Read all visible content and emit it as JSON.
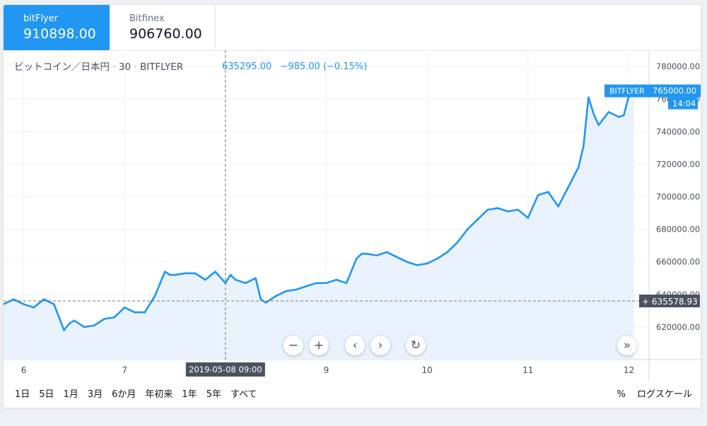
{
  "tabs": [
    {
      "name": "bitFlyer",
      "price": "910898.00"
    },
    {
      "name": "Bitfinex",
      "price": "906760.00"
    }
  ],
  "header": {
    "symbol": "ビットコイン／日本円",
    "interval": "30",
    "exchange": "BITFLYER",
    "close": "635295.00",
    "change": "−985.00 (−0.15%)"
  },
  "price_tag": {
    "label": "BITFLYER",
    "value": "765000.00",
    "time": "14:04"
  },
  "crosshair": {
    "price": "635578.93",
    "date": "2019-05-08",
    "time": "09:00"
  },
  "controls": {
    "zoom_out": "−",
    "zoom_in": "+",
    "prev": "‹",
    "next": "›",
    "reset": "↻",
    "scroll_end": "»"
  },
  "ranges": [
    "1日",
    "5日",
    "1月",
    "3月",
    "6か月",
    "年初来",
    "1年",
    "5年",
    "すべて"
  ],
  "tools": {
    "percent": "%",
    "log": "ログスケール"
  },
  "colors": {
    "accent": "#2196f3",
    "area": "#eaf3fd",
    "grid": "#eef0f3"
  },
  "chart_data": {
    "type": "area",
    "ylim": [
      600000,
      790000
    ],
    "xlim": [
      5.8,
      12.2
    ],
    "yticks": [
      620000,
      640000,
      660000,
      680000,
      700000,
      720000,
      740000,
      760000,
      780000
    ],
    "ytick_labels": [
      "620000.00",
      "640000.00",
      "660000.00",
      "680000.00",
      "700000.00",
      "720000.00",
      "740000.00",
      "760000.00",
      "780000.00"
    ],
    "xticks": [
      6,
      7,
      9,
      10,
      11,
      12
    ],
    "xtick_labels": [
      "6",
      "7",
      "9",
      "10",
      "11",
      "12"
    ],
    "series": [
      {
        "x": [
          5.8,
          5.9,
          6.0,
          6.1,
          6.2,
          6.3,
          6.4,
          6.45,
          6.5,
          6.6,
          6.7,
          6.8,
          6.9,
          7.0,
          7.1,
          7.2,
          7.3,
          7.4,
          7.45,
          7.5,
          7.6,
          7.7,
          7.8,
          7.9,
          8.0,
          8.05,
          8.1,
          8.2,
          8.3,
          8.35,
          8.4,
          8.5,
          8.6,
          8.7,
          8.8,
          8.9,
          9.0,
          9.1,
          9.2,
          9.3,
          9.35,
          9.4,
          9.5,
          9.6,
          9.7,
          9.8,
          9.9,
          10.0,
          10.1,
          10.2,
          10.3,
          10.4,
          10.5,
          10.6,
          10.7,
          10.8,
          10.9,
          11.0,
          11.1,
          11.2,
          11.3,
          11.4,
          11.5,
          11.55,
          11.6,
          11.65,
          11.7,
          11.8,
          11.9,
          11.95,
          12.0,
          12.05
        ],
        "y": [
          634000,
          637000,
          634000,
          632000,
          637000,
          634000,
          618000,
          622000,
          624000,
          620000,
          621000,
          625000,
          626000,
          632000,
          629000,
          629000,
          639000,
          654000,
          652000,
          652000,
          653000,
          653000,
          649000,
          654000,
          647000,
          652000,
          649000,
          647000,
          650000,
          637000,
          635000,
          639000,
          642000,
          643000,
          645000,
          647000,
          647000,
          649000,
          647000,
          662000,
          665000,
          665000,
          664000,
          666000,
          663000,
          660000,
          658000,
          659000,
          662000,
          666000,
          672000,
          680000,
          686000,
          692000,
          693000,
          691000,
          692000,
          687000,
          701000,
          703000,
          694000,
          706000,
          718000,
          731000,
          761000,
          751000,
          744000,
          752000,
          749000,
          750000,
          762000,
          765000
        ]
      }
    ]
  }
}
